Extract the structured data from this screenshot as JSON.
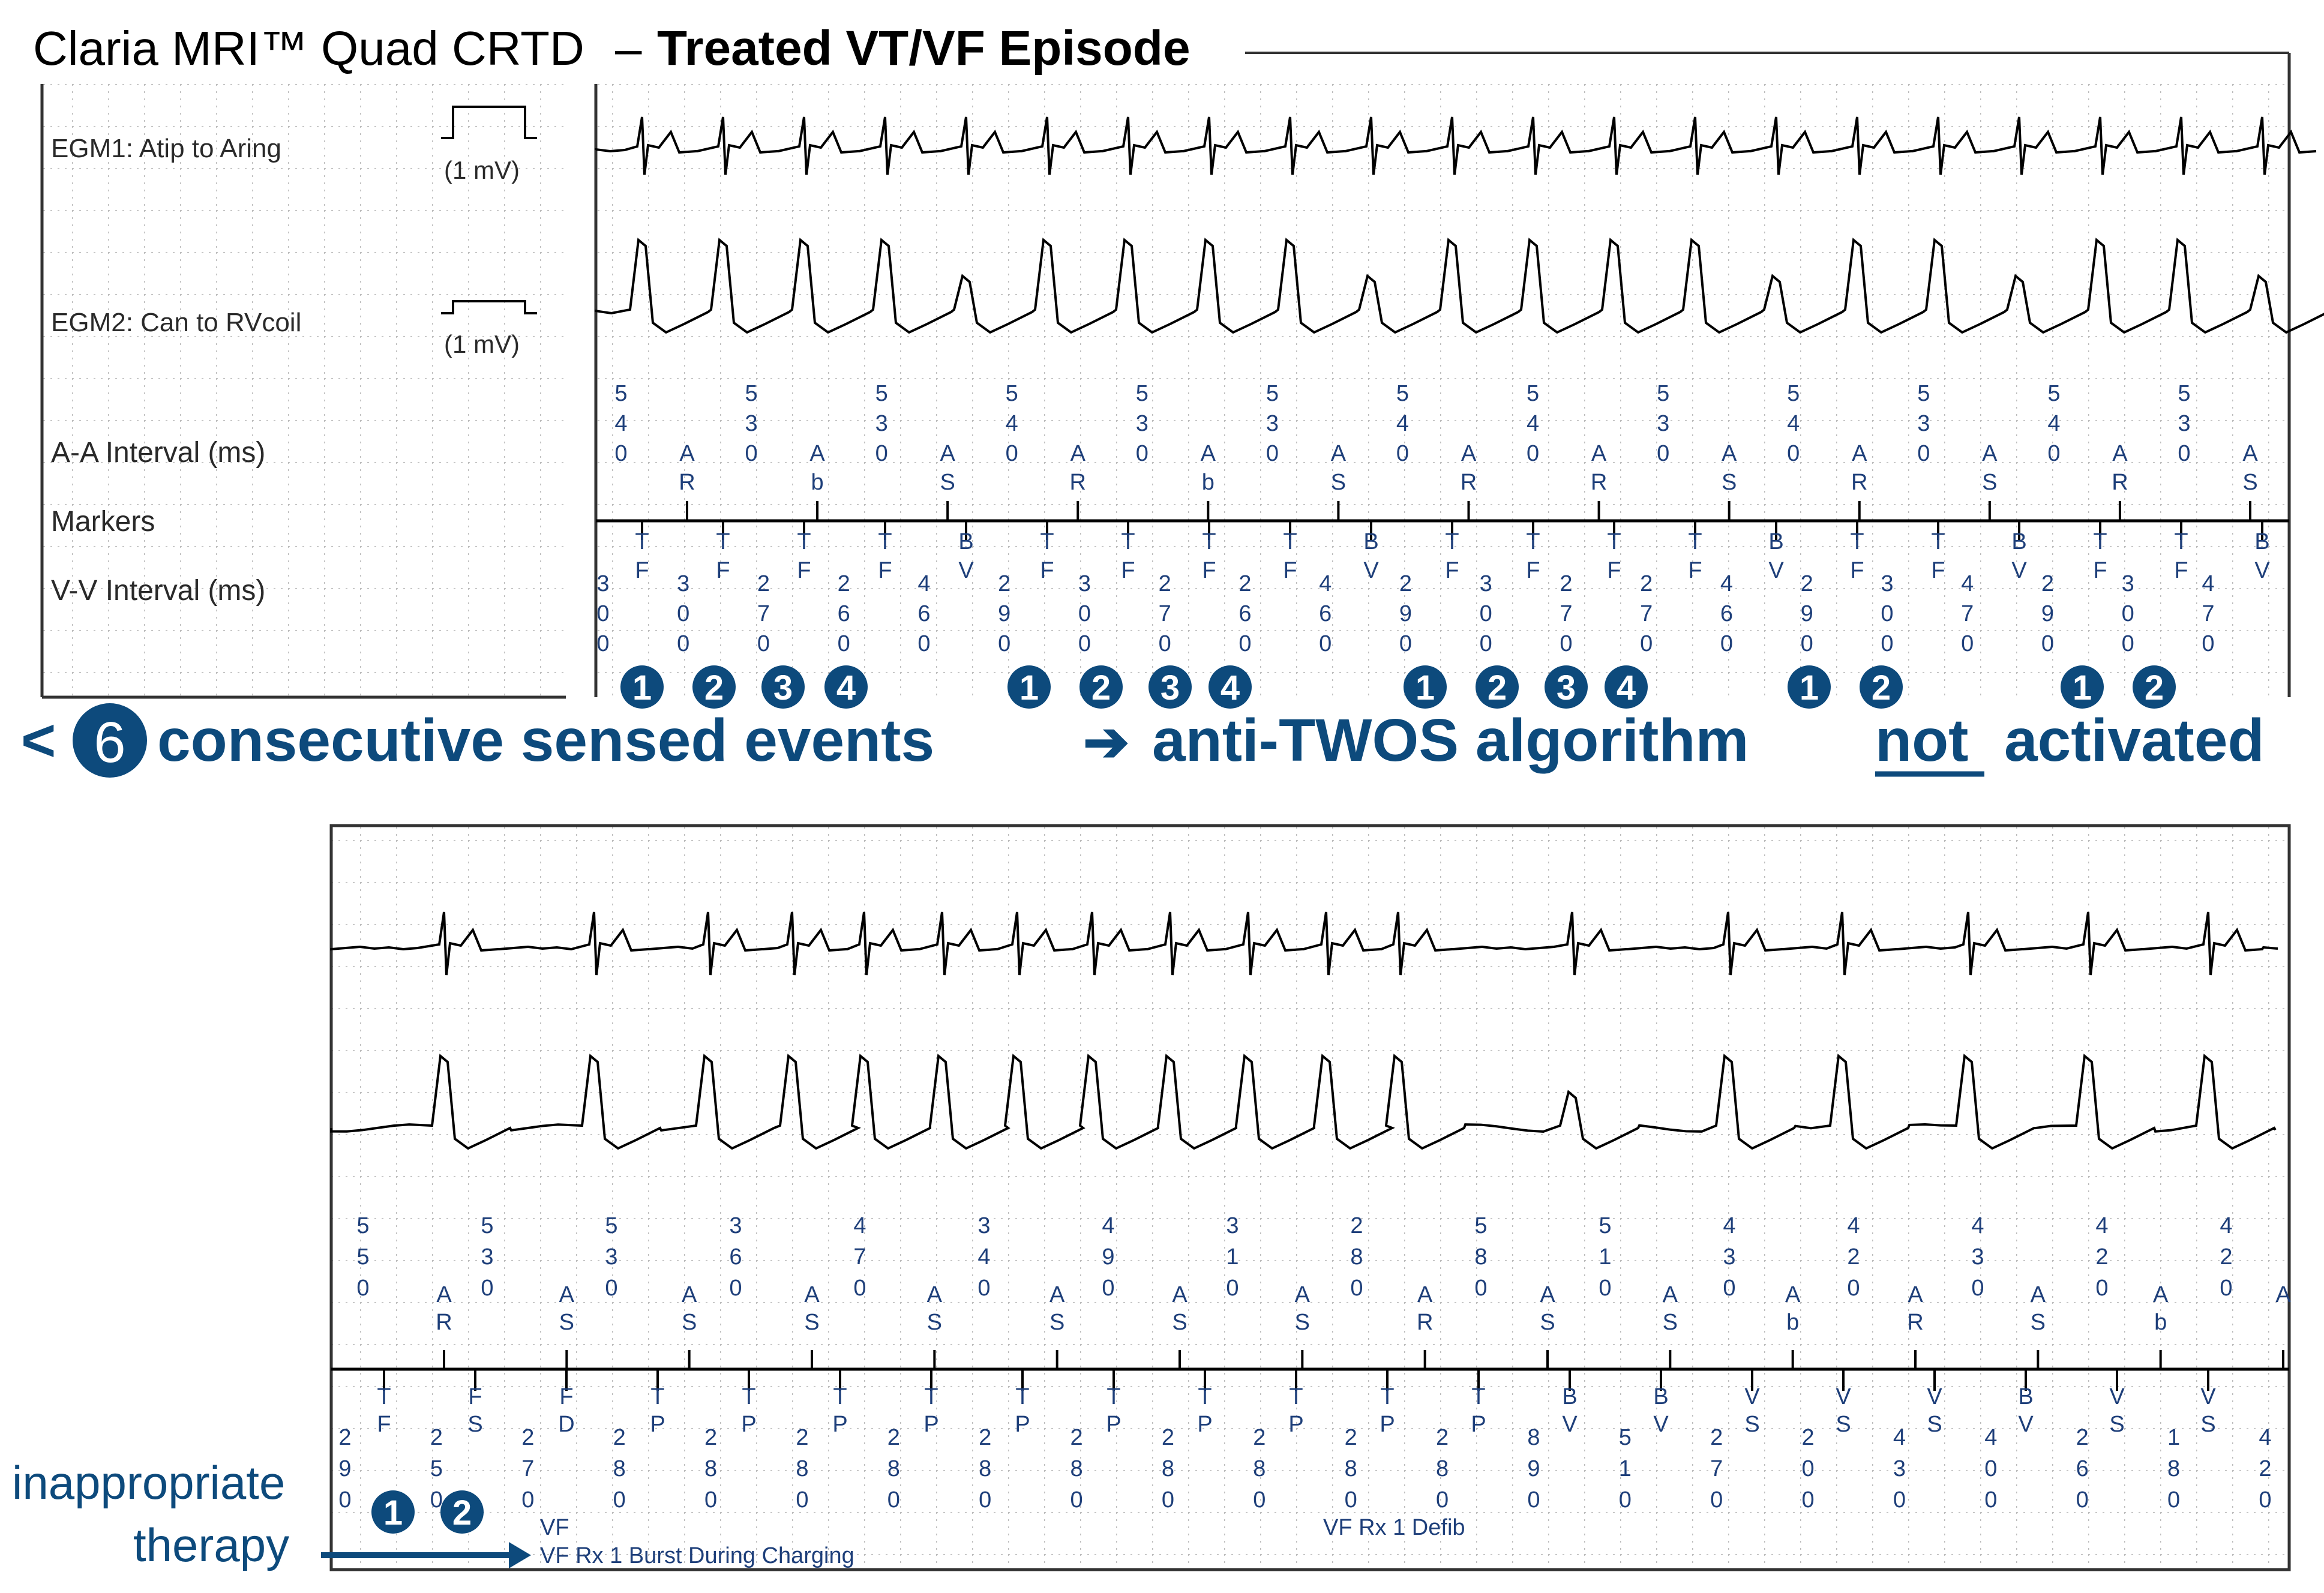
{
  "header": {
    "device": "Claria MRI™ Quad CRTD",
    "dash": "–",
    "title": "Treated VT/VF Episode"
  },
  "labels": {
    "egm1": "EGM1: Atip to Aring",
    "egm2": "EGM2: Can to RVcoil",
    "cal": "(1 mV)",
    "aa": "A-A Interval (ms)",
    "markers": "Markers",
    "vv": "V-V Interval (ms)"
  },
  "top_strip": {
    "aa_intervals": [
      "540",
      "530",
      "530",
      "540",
      "530",
      "530",
      "540",
      "540",
      "530",
      "540",
      "530",
      "540",
      "530"
    ],
    "a_markers": [
      "AR",
      "Ab",
      "AS",
      "AR",
      "Ab",
      "AS",
      "AR",
      "AR",
      "AS",
      "AR",
      "AS",
      "AR",
      "AS"
    ],
    "v_markers": [
      "TF",
      "TF",
      "TF",
      "TF",
      "BV",
      "TF",
      "TF",
      "TF",
      "TF",
      "BV",
      "TF",
      "TF",
      "TF",
      "TF",
      "BV",
      "TF",
      "TF",
      "BV",
      "TF",
      "TF",
      "BV"
    ],
    "vv_intervals": [
      "300",
      "300",
      "270",
      "260",
      "460",
      "290",
      "300",
      "270",
      "260",
      "460",
      "290",
      "300",
      "270",
      "270",
      "460",
      "290",
      "300",
      "470",
      "290",
      "300",
      "470"
    ],
    "counts": [
      "1",
      "2",
      "3",
      "4",
      "1",
      "2",
      "3",
      "4",
      "1",
      "2",
      "3",
      "4",
      "1",
      "2",
      "1",
      "2"
    ]
  },
  "banner": {
    "prefix": "<",
    "count": "6",
    "part1": "consecutive sensed events",
    "arrow": "➔",
    "part2": "anti-TWOS algorithm",
    "neg": "not",
    "part3": "activated"
  },
  "bottom_strip": {
    "aa_intervals": [
      "550",
      "530",
      "530",
      "360",
      "470",
      "340",
      "490",
      "310",
      "280",
      "580",
      "510",
      "430",
      "420",
      "430",
      "420",
      "420"
    ],
    "a_markers": [
      "AR",
      "AS",
      "AS",
      "AS",
      "AS",
      "AS",
      "AS",
      "AS",
      "AR",
      "AS",
      "AS",
      "Ab",
      "AR",
      "AS",
      "Ab",
      "A"
    ],
    "v_markers": [
      "TF",
      "FS",
      "FD",
      "TP",
      "TP",
      "TP",
      "TP",
      "TP",
      "TP",
      "TP",
      "TP",
      "TP",
      "TP",
      "BV",
      "BV",
      "VS",
      "VS",
      "VS",
      "BV",
      "VS",
      "VS"
    ],
    "vv_intervals": [
      "290",
      "250",
      "270",
      "280",
      "280",
      "280",
      "280",
      "280",
      "280",
      "280",
      "280",
      "280",
      "280",
      "890",
      "510",
      "270",
      "200",
      "430",
      "400",
      "260",
      "180",
      "420"
    ],
    "counts": [
      "1",
      "2"
    ],
    "event_vf": "VF",
    "event_burst": "VF Rx 1 Burst During Charging",
    "event_defib": "VF Rx 1 Defib"
  },
  "annotation": {
    "line1": "inappropriate",
    "line2": "therapy"
  },
  "colors": {
    "accent": "#0d4a7c",
    "trace": "#000000",
    "grid": "#b9b9b9",
    "marker_text": "#1e3f7a"
  }
}
